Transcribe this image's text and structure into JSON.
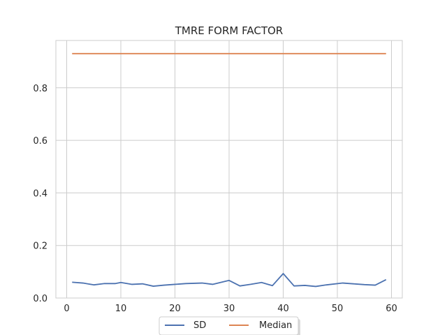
{
  "chart_data": {
    "type": "line",
    "title": "TMRE FORM FACTOR",
    "xlabel": "",
    "ylabel": "",
    "xlim": [
      -2,
      62
    ],
    "ylim": [
      0.0,
      0.98
    ],
    "xticks": [
      0,
      10,
      20,
      30,
      40,
      50,
      60
    ],
    "yticks": [
      0.0,
      0.2,
      0.4,
      0.6,
      0.8
    ],
    "xtick_labels": [
      "0",
      "10",
      "20",
      "30",
      "40",
      "50",
      "60"
    ],
    "ytick_labels": [
      "0.0",
      "0.2",
      "0.4",
      "0.6",
      "0.8"
    ],
    "grid": true,
    "legend_position": "bottom-center",
    "series": [
      {
        "name": "SD",
        "color": "#4c72b0",
        "x": [
          1,
          3,
          5,
          7,
          9,
          10,
          12,
          14,
          16,
          18,
          20,
          22,
          25,
          27,
          30,
          32,
          34,
          36,
          38,
          40,
          42,
          44,
          46,
          48,
          51,
          53,
          55,
          57,
          59
        ],
        "y": [
          0.06,
          0.057,
          0.05,
          0.055,
          0.055,
          0.059,
          0.052,
          0.054,
          0.045,
          0.049,
          0.052,
          0.055,
          0.057,
          0.052,
          0.067,
          0.046,
          0.052,
          0.059,
          0.047,
          0.093,
          0.046,
          0.048,
          0.044,
          0.05,
          0.057,
          0.054,
          0.051,
          0.049,
          0.07
        ]
      },
      {
        "name": "Median",
        "color": "#dd8452",
        "x": [
          1,
          59
        ],
        "y": [
          0.93,
          0.93
        ]
      }
    ]
  }
}
